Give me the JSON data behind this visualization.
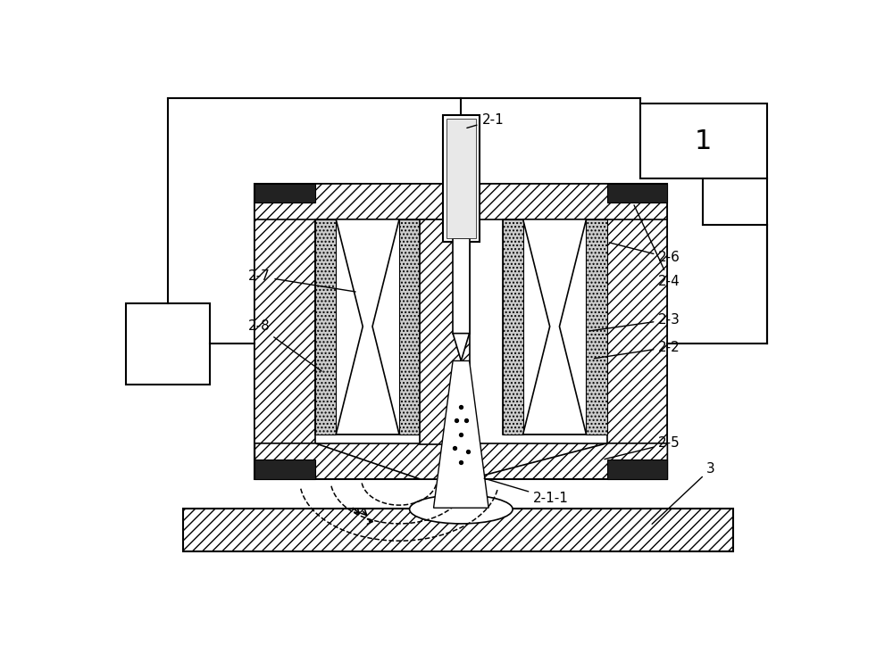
{
  "bg_color": "#ffffff",
  "line_color": "#000000",
  "fig_width": 10.0,
  "fig_height": 7.33,
  "dpi": 100
}
